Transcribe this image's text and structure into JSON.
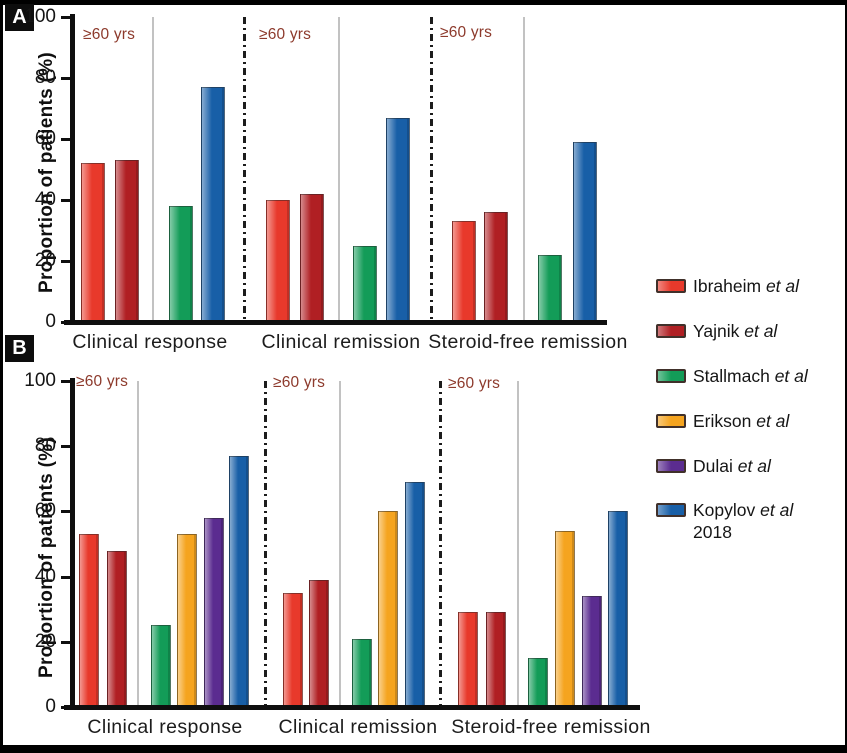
{
  "chart_data": [
    {
      "type": "bar",
      "panel_label": "A",
      "ylabel": "Proportion of patients (%)",
      "ylim": [
        0,
        100
      ],
      "yticks": [
        0,
        20,
        40,
        60,
        80,
        100
      ],
      "grid": false,
      "group_annotation": "≥60 yrs",
      "categories": [
        "Clinical response",
        "Clinical remission",
        "Steroid-free remission"
      ],
      "series": [
        {
          "name": "Ibraheim et al",
          "color": "#e8392b",
          "values": [
            52,
            40,
            33
          ]
        },
        {
          "name": "Yajnik et al",
          "color": "#b01f23",
          "values": [
            53,
            42,
            36
          ]
        },
        {
          "name": "Stallmach et al",
          "color": "#139c58",
          "values": [
            38,
            25,
            22
          ]
        },
        {
          "name": "Kopylov et al 2018",
          "color": "#185fa7",
          "values": [
            77,
            67,
            59
          ]
        }
      ]
    },
    {
      "type": "bar",
      "panel_label": "B",
      "ylabel": "Proportion of patients (%)",
      "ylim": [
        0,
        100
      ],
      "yticks": [
        0,
        20,
        40,
        60,
        80,
        100
      ],
      "grid": false,
      "group_annotation": "≥60 yrs",
      "categories": [
        "Clinical response",
        "Clinical remission",
        "Steroid-free remission"
      ],
      "series": [
        {
          "name": "Ibraheim et al",
          "color": "#e8392b",
          "values": [
            53,
            35,
            29
          ]
        },
        {
          "name": "Yajnik et al",
          "color": "#b01f23",
          "values": [
            48,
            39,
            29
          ]
        },
        {
          "name": "Stallmach et al",
          "color": "#139c58",
          "values": [
            25,
            21,
            15
          ]
        },
        {
          "name": "Erikson et al",
          "color": "#f5a41f",
          "values": [
            53,
            60,
            54
          ]
        },
        {
          "name": "Dulai et al",
          "color": "#5b2c90",
          "values": [
            58,
            null,
            34
          ]
        },
        {
          "name": "Kopylov et al 2018",
          "color": "#185fa7",
          "values": [
            77,
            69,
            60
          ]
        }
      ]
    }
  ],
  "legend": {
    "items": [
      {
        "name": "Ibraheim",
        "suffix": "et al",
        "line2": "",
        "color": "#e8392b"
      },
      {
        "name": "Yajnik",
        "suffix": "et al",
        "line2": "",
        "color": "#b01f23"
      },
      {
        "name": "Stallmach",
        "suffix": "et al",
        "line2": "",
        "color": "#139c58"
      },
      {
        "name": "Erikson",
        "suffix": "et al",
        "line2": "",
        "color": "#f5a41f"
      },
      {
        "name": "Dulai",
        "suffix": "et al",
        "line2": "",
        "color": "#5b2c90"
      },
      {
        "name": "Kopylov",
        "suffix": "et al",
        "line2": "2018",
        "color": "#185fa7"
      }
    ]
  }
}
